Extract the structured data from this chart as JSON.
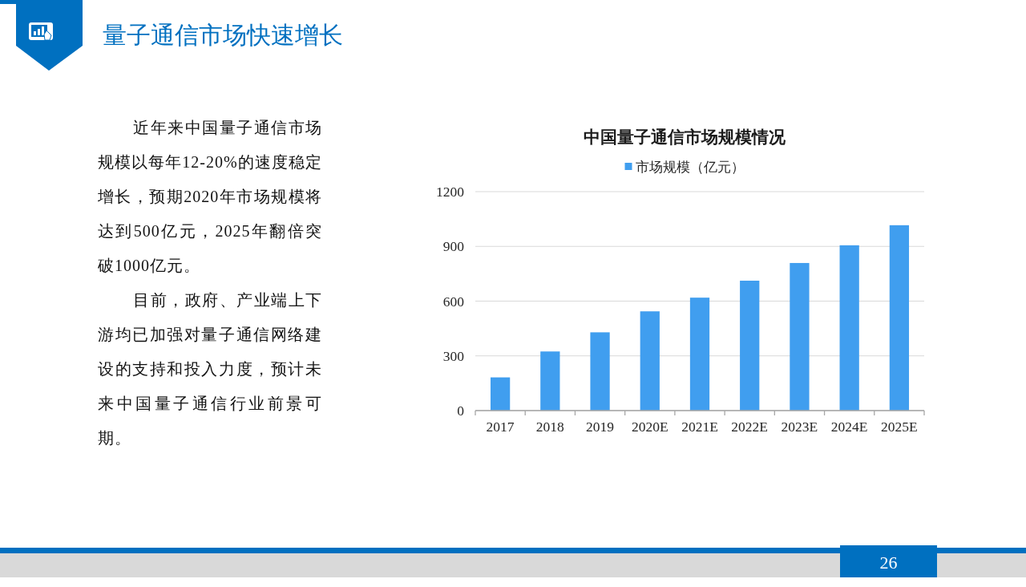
{
  "chart_data": [
    {
      "type": "other",
      "title": "量子通信市场快速增长",
      "annotations": [
        "近年来中国量子通信市场规模以每年12-20%的速度稳定增长，预期2020年市场规模将达到500亿元，2025年翻倍突破1000亿元。",
        "目前，政府、产业端上下游均已加强对量子通信网络建设的支持和投入力度，预计未来中国量子通信行业前景可期。",
        "26"
      ]
    },
    {
      "type": "bar",
      "title": "中国量子通信市场规模情况",
      "categories": [
        "2017",
        "2018",
        "2019",
        "2020E",
        "2021E",
        "2022E",
        "2023E",
        "2024E",
        "2025E"
      ],
      "series": [
        {
          "name": "市场规模（亿元）",
          "color": "#409eef",
          "values": [
            182,
            324,
            429,
            544,
            619,
            712,
            809,
            906,
            1016
          ]
        }
      ],
      "ylim": [
        0,
        1200
      ],
      "yticks": [
        0,
        300,
        600,
        900,
        1200
      ],
      "grid": "y",
      "legend": "top"
    }
  ]
}
